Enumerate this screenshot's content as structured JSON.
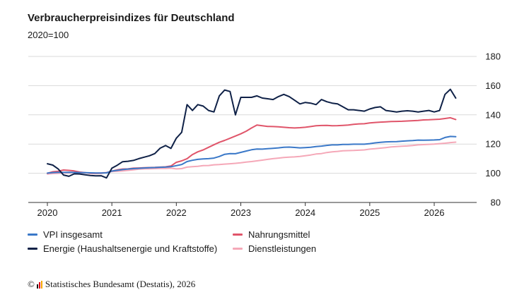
{
  "title": "Verbraucherpreisindizes für Deutschland",
  "subtitle": "2020=100",
  "source": {
    "copyright_symbol": "©",
    "text": "Statistisches Bundesamt (Destatis), 2026",
    "logo_colors": [
      "#1a1a1a",
      "#e2001a",
      "#f7a600"
    ]
  },
  "chart_data": {
    "type": "line",
    "ylim": [
      80,
      180
    ],
    "yticks": [
      "80",
      "100",
      "120",
      "140",
      "160",
      "180"
    ],
    "xticks": [
      "2020",
      "2021",
      "2022",
      "2023",
      "2024",
      "2025",
      "2026"
    ],
    "x_start": "2020-01",
    "grid": true,
    "y_axis_side": "right",
    "legend_position": "bottom",
    "series": [
      {
        "name": "VPI insgesamt",
        "color": "#3a78c8",
        "values": [
          100.1,
          100.5,
          100.6,
          100.6,
          100.7,
          100.6,
          100.5,
          100.4,
          100.3,
          100.2,
          100.2,
          100.3,
          101.5,
          102.0,
          102.5,
          102.9,
          103.2,
          103.4,
          103.6,
          103.8,
          103.9,
          104.1,
          104.2,
          104.5,
          105.2,
          106.0,
          108.0,
          108.9,
          109.5,
          109.8,
          110.0,
          110.4,
          111.5,
          113.0,
          113.5,
          113.4,
          114.3,
          115.2,
          116.1,
          116.6,
          116.5,
          116.8,
          117.1,
          117.4,
          117.8,
          117.9,
          117.7,
          117.4,
          117.6,
          117.8,
          118.3,
          118.6,
          119.1,
          119.4,
          119.4,
          119.7,
          119.7,
          119.9,
          119.9,
          119.9,
          120.3,
          120.8,
          121.2,
          121.5,
          121.6,
          121.7,
          122.0,
          122.2,
          122.4,
          122.7,
          122.6,
          122.7,
          122.8,
          123.0,
          124.5,
          125.2,
          125.0
        ],
        "last_index": 76
      },
      {
        "name": "Nahrungsmittel",
        "color": "#e0556a",
        "values": [
          100.0,
          101.0,
          101.4,
          102.2,
          102.0,
          101.6,
          100.8,
          100.4,
          100.0,
          99.9,
          100.0,
          100.4,
          101.5,
          102.3,
          102.9,
          103.0,
          103.5,
          103.6,
          103.8,
          103.9,
          104.0,
          104.2,
          104.4,
          105.0,
          107.5,
          108.5,
          110.0,
          112.8,
          114.7,
          116.0,
          117.8,
          119.5,
          121.2,
          122.5,
          124.0,
          125.5,
          127.0,
          128.8,
          131.0,
          133.0,
          132.5,
          132.1,
          132.0,
          131.8,
          131.5,
          131.2,
          131.0,
          131.2,
          131.5,
          132.0,
          132.5,
          132.7,
          132.8,
          132.5,
          132.6,
          132.8,
          133.0,
          133.5,
          133.8,
          133.9,
          134.5,
          134.8,
          135.0,
          135.2,
          135.4,
          135.5,
          135.6,
          135.8,
          136.0,
          136.2,
          136.5,
          136.6,
          136.8,
          137.0,
          137.5,
          138.0,
          136.8
        ],
        "last_index": 76
      },
      {
        "name": "Energie (Haushaltsenergie und Kraftstoffe)",
        "color": "#0f2147",
        "values": [
          106.5,
          105.6,
          103.0,
          98.8,
          97.9,
          99.6,
          99.5,
          99.0,
          98.5,
          98.2,
          98.3,
          96.8,
          103.5,
          105.5,
          107.9,
          108.2,
          108.8,
          110.0,
          111.0,
          112.0,
          113.5,
          117.2,
          119.0,
          117.0,
          124.0,
          128.0,
          147.0,
          143.0,
          147.0,
          146.0,
          143.0,
          142.0,
          153.0,
          157.0,
          156.0,
          140.0,
          152.0,
          152.0,
          152.0,
          153.0,
          151.5,
          151.0,
          150.5,
          152.5,
          154.0,
          152.5,
          150.0,
          147.5,
          148.5,
          148.0,
          147.0,
          150.5,
          149.0,
          148.0,
          147.5,
          145.5,
          143.5,
          143.5,
          143.0,
          142.5,
          144.0,
          145.0,
          145.5,
          143.0,
          142.5,
          142.0,
          142.5,
          142.8,
          142.5,
          142.0,
          142.5,
          143.0,
          142.0,
          143.0,
          154.0,
          157.5,
          151.5
        ],
        "last_index": 76
      },
      {
        "name": "Dienstleistungen",
        "color": "#f5a8b8",
        "values": [
          99.5,
          99.8,
          100.0,
          100.2,
          100.3,
          100.4,
          100.2,
          100.3,
          100.3,
          100.2,
          100.3,
          100.5,
          101.2,
          101.4,
          101.6,
          102.0,
          102.3,
          102.8,
          103.0,
          103.1,
          103.2,
          103.3,
          103.3,
          103.5,
          103.0,
          103.2,
          104.2,
          104.5,
          104.8,
          105.2,
          105.3,
          105.8,
          106.0,
          106.3,
          106.5,
          106.8,
          107.2,
          107.7,
          108.0,
          108.5,
          109.0,
          109.5,
          110.0,
          110.4,
          110.8,
          111.0,
          111.2,
          111.5,
          112.0,
          112.5,
          113.2,
          113.5,
          114.2,
          114.7,
          115.0,
          115.4,
          115.5,
          115.6,
          115.8,
          116.0,
          116.5,
          116.8,
          117.2,
          117.6,
          118.0,
          118.3,
          118.5,
          118.7,
          119.0,
          119.4,
          119.6,
          119.8,
          120.0,
          120.3,
          120.6,
          121.0,
          121.3
        ],
        "last_index": 76
      }
    ]
  }
}
